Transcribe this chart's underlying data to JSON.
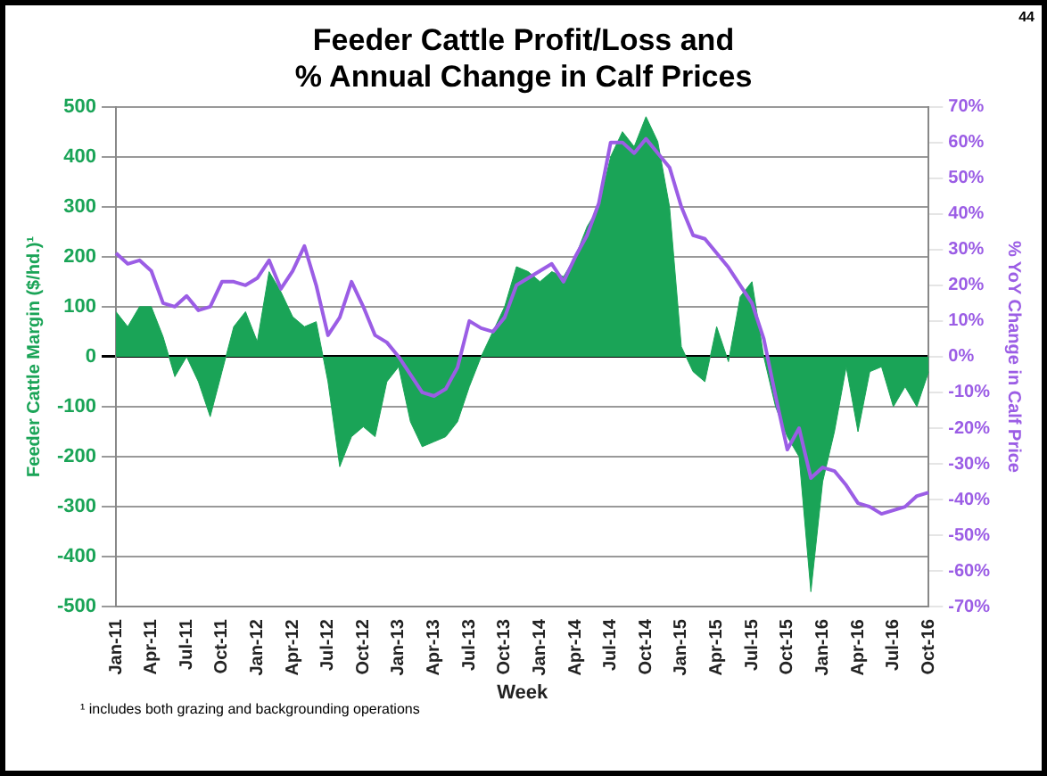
{
  "chart_data": {
    "type": "area",
    "title": "Feeder Cattle Profit/Loss and\n% Annual Change in Calf Prices",
    "xlabel": "Week",
    "ylabel": "Feeder Cattle Margin ($/hd.)¹",
    "y2label": "% YoY Change in Calf Price",
    "categories": [
      "Jan-11",
      null,
      null,
      "Apr-11",
      null,
      null,
      "Jul-11",
      null,
      null,
      "Oct-11",
      null,
      null,
      "Jan-12",
      null,
      null,
      "Apr-12",
      null,
      null,
      "Jul-12",
      null,
      null,
      "Oct-12",
      null,
      null,
      "Jan-13",
      null,
      null,
      "Apr-13",
      null,
      null,
      "Jul-13",
      null,
      null,
      "Oct-13",
      null,
      null,
      "Jan-14",
      null,
      null,
      "Apr-14",
      null,
      null,
      "Jul-14",
      null,
      null,
      "Oct-14",
      null,
      null,
      "Jan-15",
      null,
      null,
      "Apr-15",
      null,
      null,
      "Jul-15",
      null,
      null,
      "Oct-15",
      null,
      null,
      "Jan-16",
      null,
      null,
      "Apr-16",
      null,
      null,
      "Jul-16",
      null,
      null,
      "Oct-16"
    ],
    "series": [
      {
        "type": "area",
        "color": "#1aa457",
        "values": [
          90,
          60,
          100,
          100,
          40,
          -40,
          0,
          -50,
          -120,
          -30,
          60,
          90,
          30,
          170,
          130,
          80,
          60,
          70,
          -50,
          -220,
          -160,
          -140,
          -160,
          -50,
          -20,
          -130,
          -180,
          -170,
          -160,
          -130,
          -60,
          0,
          50,
          100,
          180,
          170,
          150,
          170,
          160,
          200,
          260,
          300,
          400,
          450,
          420,
          480,
          430,
          300,
          20,
          -30,
          -50,
          60,
          -10,
          120,
          150,
          0,
          -100,
          -160,
          -200,
          -470,
          -250,
          -150,
          -20,
          -150,
          -30,
          -20,
          -100,
          -60,
          -100,
          -30
        ]
      },
      {
        "type": "line",
        "axis": "y2",
        "color": "#9b5de5",
        "values": [
          29,
          26,
          27,
          24,
          15,
          14,
          17,
          13,
          14,
          21,
          21,
          20,
          22,
          27,
          19,
          24,
          31,
          20,
          6,
          11,
          21,
          14,
          6,
          4,
          0,
          -5,
          -10,
          -11,
          -9,
          -3,
          10,
          8,
          7,
          11,
          20,
          22,
          24,
          26,
          21,
          28,
          34,
          43,
          60,
          60,
          57,
          61,
          57,
          53,
          42,
          34,
          33,
          29,
          25,
          20,
          15,
          5,
          -11,
          -26,
          -20,
          -34,
          -31,
          -32,
          -36,
          -41,
          -42,
          -44,
          -43,
          -42,
          -39,
          -38
        ]
      }
    ],
    "ylim": [
      -500,
      500
    ],
    "yticks": [
      -500,
      -400,
      -300,
      -200,
      -100,
      0,
      100,
      200,
      300,
      400,
      500
    ],
    "y2lim": [
      -70,
      70
    ],
    "y2ticks": [
      {
        "value": -70,
        "label": "-70%"
      },
      {
        "value": -60,
        "label": "-60%"
      },
      {
        "value": -50,
        "label": "-50%"
      },
      {
        "value": -40,
        "label": "-40%"
      },
      {
        "value": -30,
        "label": "-30%"
      },
      {
        "value": -20,
        "label": "-20%"
      },
      {
        "value": -10,
        "label": "-10%"
      },
      {
        "value": 0,
        "label": "0%"
      },
      {
        "value": 10,
        "label": "10%"
      },
      {
        "value": 20,
        "label": "20%"
      },
      {
        "value": 30,
        "label": "30%"
      },
      {
        "value": 40,
        "label": "40%"
      },
      {
        "value": 50,
        "label": "50%"
      },
      {
        "value": 60,
        "label": "60%"
      },
      {
        "value": 70,
        "label": "70%"
      }
    ],
    "grid": "y",
    "annotations": [
      "44",
      "¹ includes both grazing and backgrounding operations"
    ]
  }
}
